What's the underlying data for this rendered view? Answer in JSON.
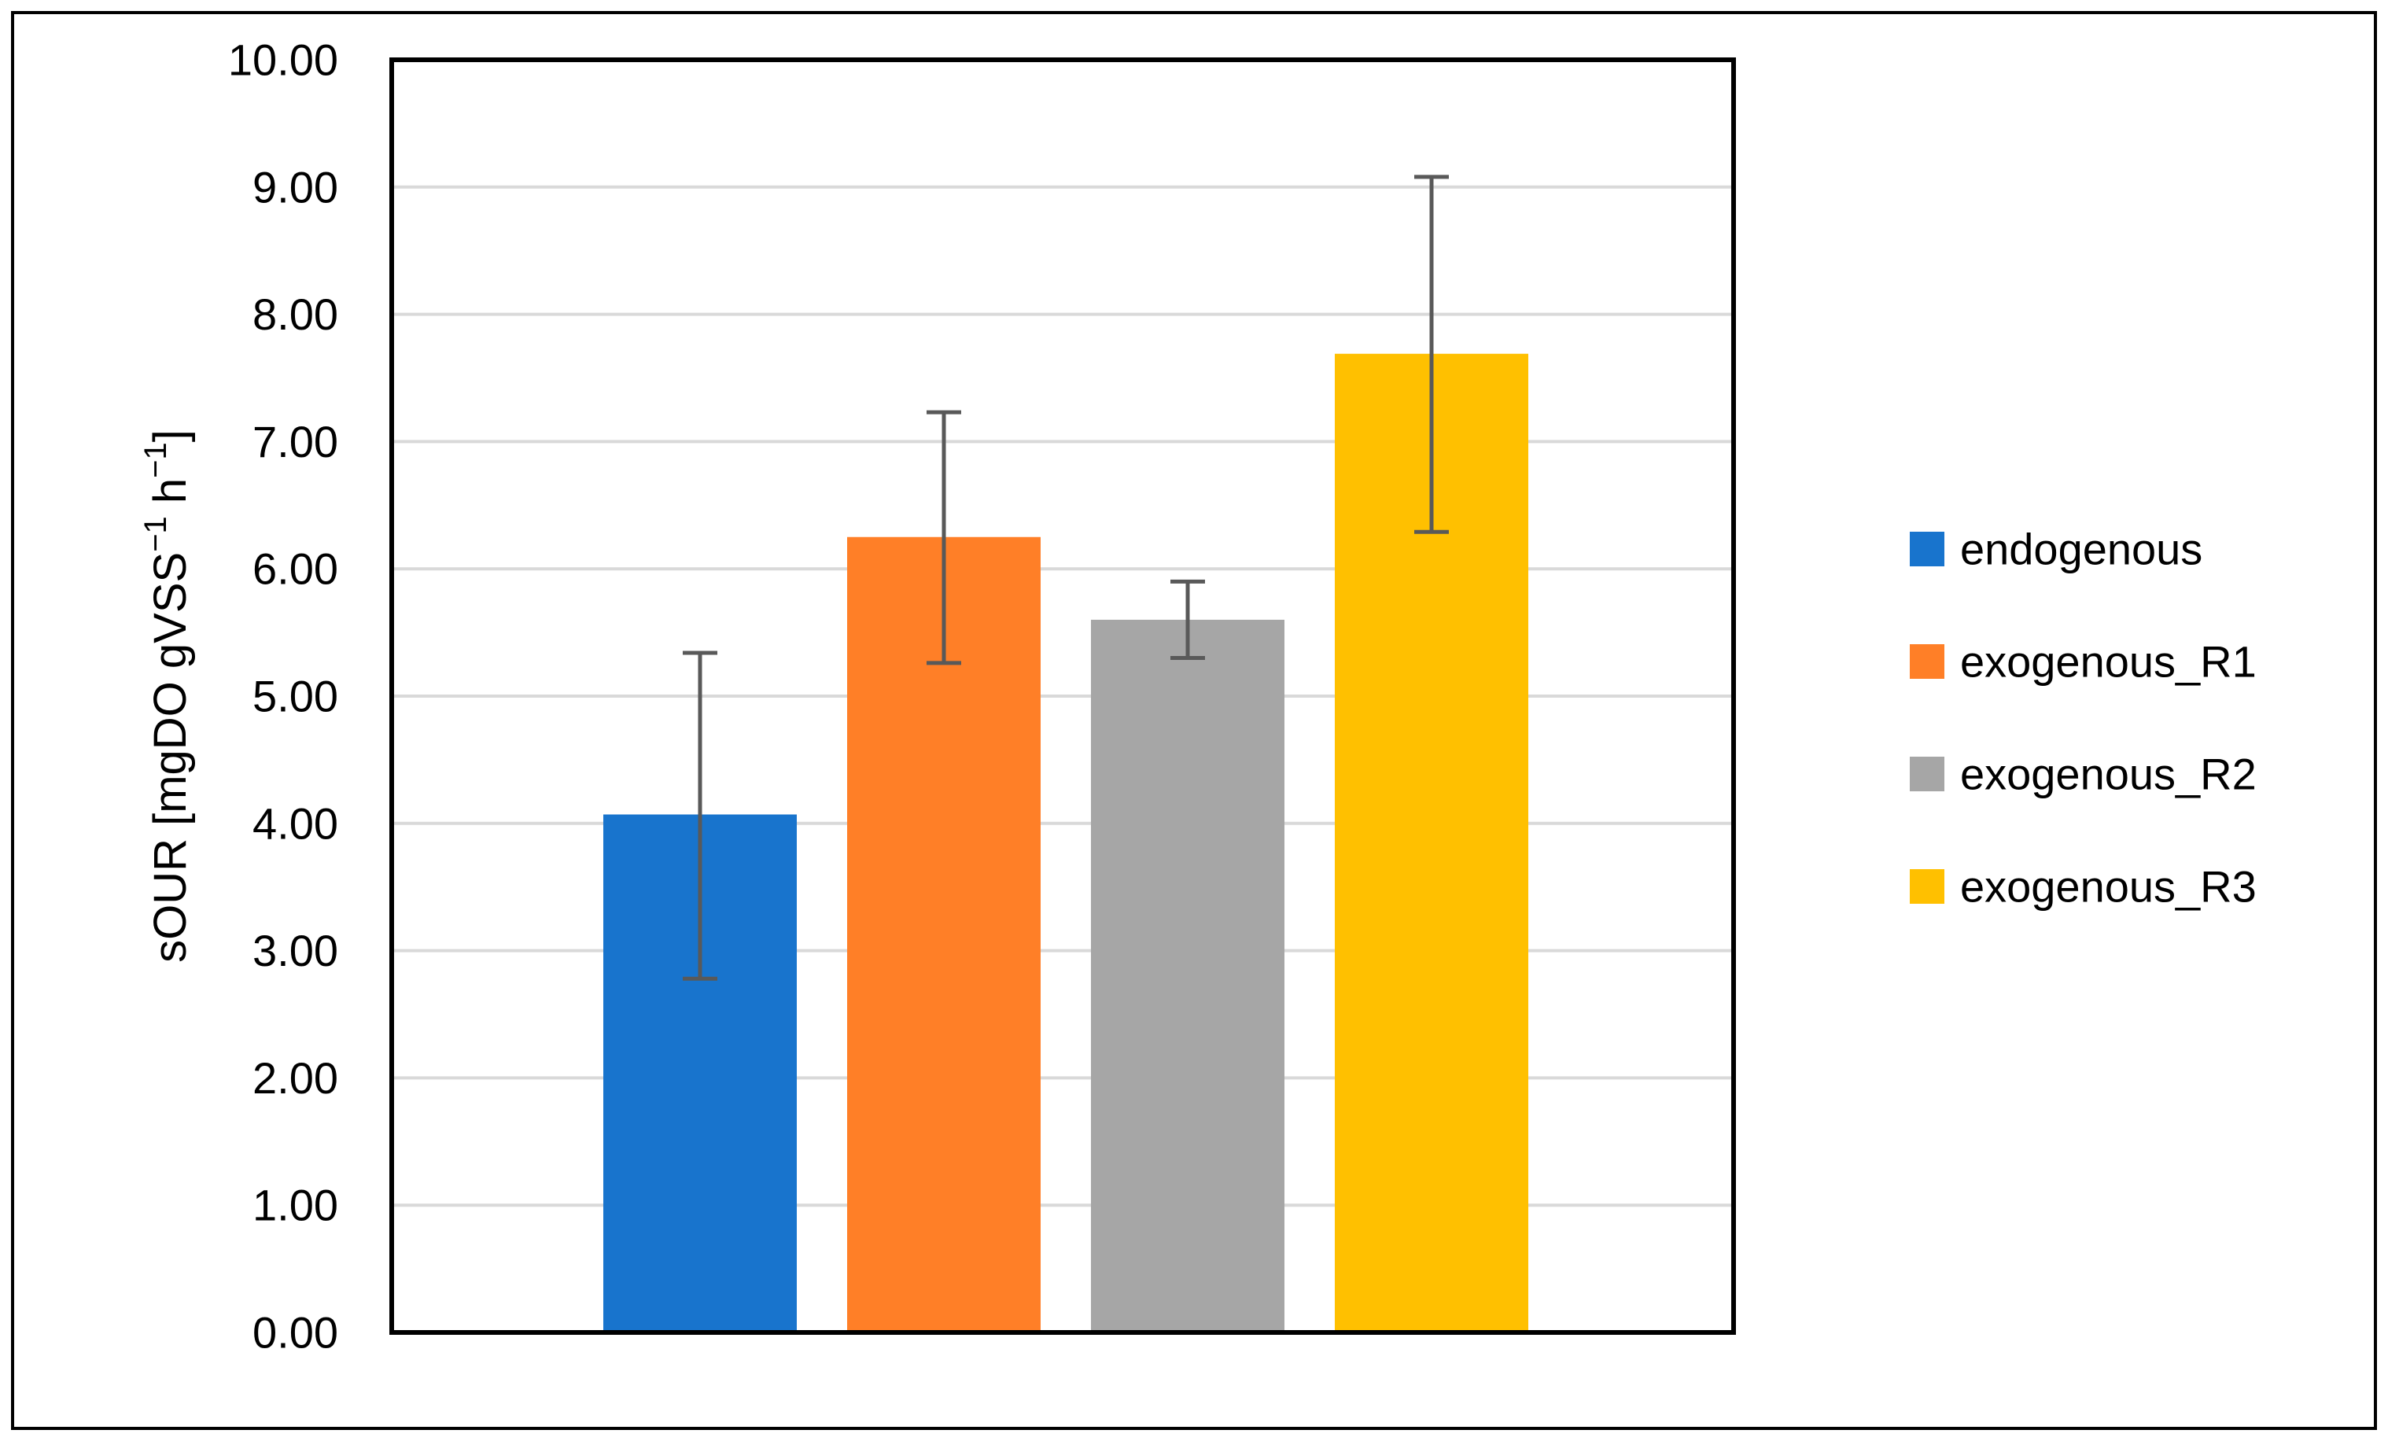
{
  "chart_data": {
    "type": "bar",
    "title": "",
    "xlabel": "",
    "ylabel": {
      "prefix": "sOUR [mgDO gVSS",
      "sup1": "−1",
      "middle": " h",
      "sup2": "−1",
      "suffix": "]"
    },
    "ylim": [
      0,
      10
    ],
    "yticks": [
      "0.00",
      "1.00",
      "2.00",
      "3.00",
      "4.00",
      "5.00",
      "6.00",
      "7.00",
      "8.00",
      "9.00",
      "10.00"
    ],
    "grid": true,
    "legend_position": "right",
    "series": [
      {
        "name": "endogenous",
        "value": 4.07,
        "error_low": 2.78,
        "error_high": 5.34,
        "color": "#1874CD"
      },
      {
        "name": "exogenous_R1",
        "value": 6.25,
        "error_low": 5.26,
        "error_high": 7.23,
        "color": "#FF7F27"
      },
      {
        "name": "exogenous_R2",
        "value": 5.6,
        "error_low": 5.3,
        "error_high": 5.9,
        "color": "#A6A6A6"
      },
      {
        "name": "exogenous_R3",
        "value": 7.69,
        "error_low": 6.29,
        "error_high": 9.08,
        "color": "#FFC000"
      }
    ]
  }
}
